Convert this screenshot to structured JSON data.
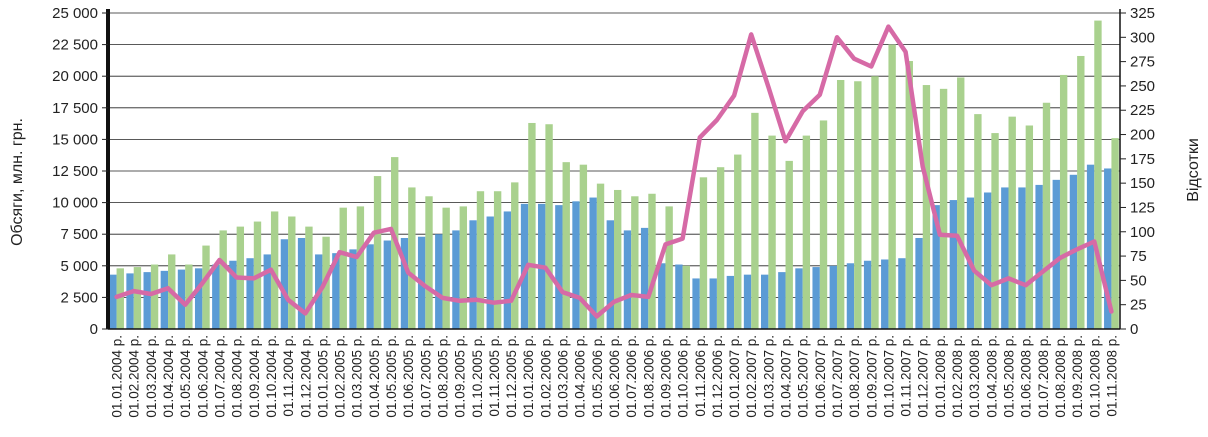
{
  "chart_data": {
    "type": "bar",
    "title": "",
    "ylabel": "Обсяги, млн. грн.",
    "y2label": "Відсотки",
    "ylim": [
      0,
      25000
    ],
    "y2lim": [
      0,
      325
    ],
    "yticks": [
      "0",
      "2 500",
      "5 000",
      "7 500",
      "10 000",
      "12 500",
      "15 000",
      "17 500",
      "20 000",
      "22 500",
      "25 000"
    ],
    "y2ticks": [
      "0",
      "25",
      "50",
      "75",
      "100",
      "125",
      "150",
      "175",
      "200",
      "225",
      "250",
      "275",
      "300",
      "325"
    ],
    "grid": true,
    "categories": [
      "01.01.2004 р.",
      "01.02.2004 р.",
      "01.03.2004 р.",
      "01.04.2004 р.",
      "01.05.2004 р.",
      "01.06.2004 р.",
      "01.07.2004 р.",
      "01.08.2004 р.",
      "01.09.2004 р.",
      "01.10.2004 р.",
      "01.11.2004 р.",
      "01.12.2004 р.",
      "01.01.2005 р.",
      "01.02.2005 р.",
      "01.03.2005 р.",
      "01.04.2005 р.",
      "01.05.2005 р.",
      "01.06.2005 р.",
      "01.07.2005 р.",
      "01.08.2005 р.",
      "01.09.2005 р.",
      "01.10.2005 р.",
      "01.11.2005 р.",
      "01.12.2005 р.",
      "01.01.2006 р.",
      "01.02.2006 р.",
      "01.03.2006 р.",
      "01.04.2006 р.",
      "01.05.2006 р.",
      "01.06.2006 р.",
      "01.07.2006 р.",
      "01.08.2006 р.",
      "01.09.2006 р.",
      "01.10.2006 р.",
      "01.11.2006 р.",
      "01.12.2006 р.",
      "01.01.2007 р.",
      "01.02.2007 р.",
      "01.03.2007 р.",
      "01.04.2007 р.",
      "01.05.2007 р.",
      "01.06.2007 р.",
      "01.07.2007 р.",
      "01.08.2007 р.",
      "01.09.2007 р.",
      "01.10.2007 р.",
      "01.11.2007 р.",
      "01.12.2007 р.",
      "01.01.2008 р.",
      "01.02.2008 р.",
      "01.03.2008 р.",
      "01.04.2008 р.",
      "01.05.2008 р.",
      "01.06.2008 р.",
      "01.07.2008 р.",
      "01.08.2008 р.",
      "01.09.2008 р.",
      "01.10.2008 р.",
      "01.11.2008 р."
    ],
    "series": [
      {
        "color": "#5b9bd5",
        "axis": "left",
        "kind": "bar",
        "values": [
          4300,
          4400,
          4500,
          4600,
          4700,
          4800,
          5100,
          5400,
          5600,
          5900,
          7100,
          7200,
          5900,
          6000,
          6300,
          6700,
          7000,
          7200,
          7300,
          7500,
          7800,
          8600,
          8900,
          9300,
          9900,
          9900,
          9800,
          10100,
          10400,
          8600,
          7800,
          8000,
          5200,
          5100,
          4000,
          4000,
          4200,
          4300,
          4300,
          4500,
          4800,
          4900,
          5000,
          5200,
          5400,
          5500,
          5600,
          7200,
          9800,
          10200,
          10400,
          10800,
          11200,
          11200,
          11400,
          11800,
          12200,
          13000,
          12700
        ]
      },
      {
        "color": "#a9d18e",
        "axis": "left",
        "kind": "bar",
        "values": [
          4800,
          4900,
          5100,
          5900,
          5100,
          6600,
          7800,
          8100,
          8500,
          9300,
          8900,
          8100,
          7300,
          9600,
          9700,
          12100,
          13600,
          11200,
          10500,
          9600,
          9700,
          10900,
          10900,
          11600,
          16300,
          16200,
          13200,
          13000,
          11500,
          11000,
          10500,
          10700,
          9700,
          5000,
          12000,
          12800,
          13800,
          17100,
          15300,
          13300,
          15300,
          16500,
          19700,
          19600,
          20000,
          22500,
          21200,
          19300,
          19000,
          19900,
          17000,
          15500,
          16800,
          16100,
          17900,
          20100,
          21600,
          24400,
          15100
        ]
      },
      {
        "color": "#d66aa6",
        "axis": "right",
        "kind": "line",
        "values": [
          33,
          39,
          36,
          42,
          25,
          47,
          71,
          53,
          52,
          61,
          30,
          16,
          43,
          79,
          74,
          99,
          103,
          58,
          44,
          32,
          29,
          30,
          27,
          29,
          66,
          63,
          38,
          32,
          13,
          28,
          35,
          33,
          87,
          93,
          197,
          215,
          240,
          303,
          249,
          193,
          224,
          241,
          300,
          278,
          270,
          311,
          285,
          167,
          97,
          96,
          60,
          45,
          52,
          45,
          59,
          73,
          82,
          90,
          18
        ]
      }
    ]
  }
}
